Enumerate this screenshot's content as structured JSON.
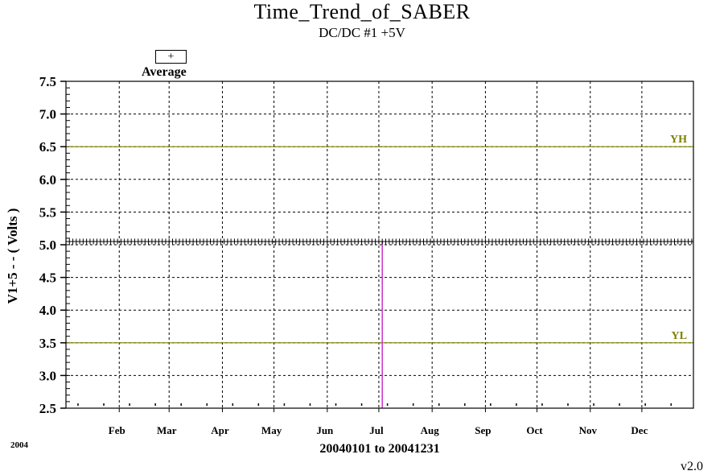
{
  "chart_data": {
    "type": "line",
    "title": "Time_Trend_of_SABER",
    "subtitle": "DC/DC #1 +5V",
    "ylabel": "V1+5  - - ( Volts )",
    "xlabel": "20040101 to 20041231",
    "year_label": "2004",
    "version": "v2.0",
    "legend": {
      "symbol": "+",
      "label": "Average"
    },
    "ylim": [
      2.5,
      7.5
    ],
    "yticks": [
      "2.5",
      "3.0",
      "3.5",
      "4.0",
      "4.5",
      "5.0",
      "5.5",
      "6.0",
      "6.5",
      "7.0",
      "7.5"
    ],
    "xlim": [
      "2004-01-01",
      "2004-12-31"
    ],
    "xtick_labels": [
      "Feb",
      "Mar",
      "Apr",
      "May",
      "Jun",
      "Jul",
      "Aug",
      "Sep",
      "Oct",
      "Nov",
      "Dec"
    ],
    "xtick_dates": [
      "2004-02-01",
      "2004-03-01",
      "2004-04-01",
      "2004-05-01",
      "2004-06-01",
      "2004-07-01",
      "2004-08-01",
      "2004-09-01",
      "2004-10-01",
      "2004-11-01",
      "2004-12-01"
    ],
    "grid": true,
    "limit_lines": [
      {
        "label": "YH",
        "value": 6.5,
        "color": "#808000"
      },
      {
        "label": "YL",
        "value": 3.5,
        "color": "#808000"
      }
    ],
    "marker_line": {
      "date": "2004-07-03",
      "color": "#cc33cc"
    },
    "series": [
      {
        "name": "Average",
        "marker": "+",
        "color": "#000000",
        "x_start": "2004-01-01",
        "x_end": "2004-12-31",
        "value": 5.05
      }
    ]
  }
}
